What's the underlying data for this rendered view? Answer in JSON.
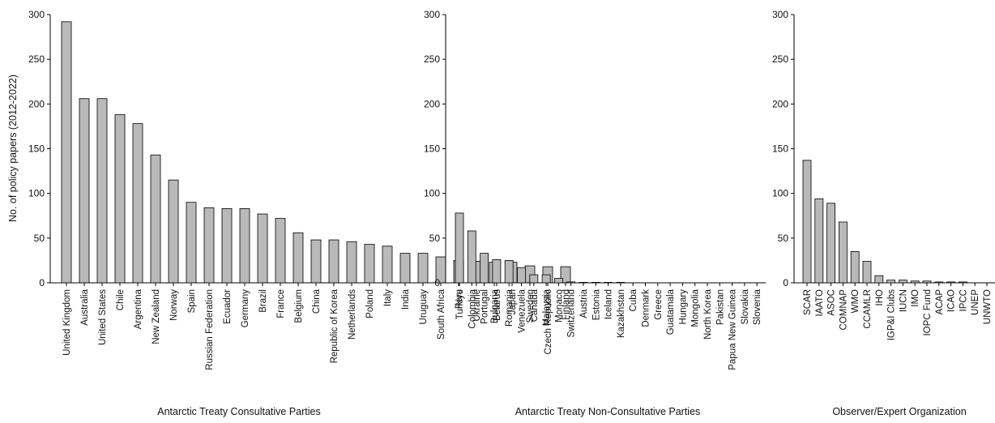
{
  "chart_data": [
    {
      "type": "bar",
      "xlabel": "Antarctic Treaty Consultative Parties",
      "ylabel": "No. of policy papers (2012-2022)",
      "ylim": [
        0,
        300
      ],
      "yticks": [
        "0",
        "50",
        "100",
        "150",
        "200",
        "250",
        "300"
      ],
      "categories": [
        "United Kingdom",
        "Australia",
        "United States",
        "Chile",
        "Argentina",
        "New Zealand",
        "Norway",
        "Spain",
        "Russian Federation",
        "Ecuador",
        "Germany",
        "Brazil",
        "France",
        "Belgium",
        "China",
        "Republic of Korea",
        "Netherlands",
        "Poland",
        "Italy",
        "India",
        "Uruguay",
        "South Africa",
        "Peru",
        "Ukraine",
        "Bulgaria",
        "Japan",
        "Sweden",
        "Czech Republic",
        "Finland"
      ],
      "values": [
        292,
        206,
        206,
        188,
        178,
        143,
        115,
        90,
        84,
        83,
        83,
        77,
        72,
        56,
        48,
        48,
        46,
        43,
        41,
        33,
        33,
        29,
        25,
        24,
        23,
        23,
        19,
        18,
        18
      ]
    },
    {
      "type": "bar",
      "xlabel": "Antarctic Treaty Non-Consultative Parties",
      "ylabel": "",
      "ylim": [
        0,
        300
      ],
      "yticks": [
        "0",
        "50",
        "100",
        "150",
        "200",
        "250",
        "300"
      ],
      "categories": [
        "Turkiye",
        "Colombia",
        "Portugal",
        "Belarus",
        "Romania",
        "Venezuela",
        "Canada",
        "Malaysia",
        "Monaco",
        "Switzerland",
        "Austria",
        "Estonia",
        "Iceland",
        "Kazakhstan",
        "Cuba",
        "Denmark",
        "Greece",
        "Guatamala",
        "Hungary",
        "Mongolia",
        "North Korea",
        "Pakistan",
        "Papua New Guinea",
        "Slovakia",
        "Slovenia"
      ],
      "values": [
        78,
        58,
        33,
        26,
        25,
        17,
        9,
        9,
        5,
        1,
        0.5,
        0.5,
        0.5,
        0.5,
        0,
        0,
        0,
        0,
        0,
        0,
        0,
        0,
        0,
        0,
        0
      ]
    },
    {
      "type": "bar",
      "xlabel": "Observer/Expert Organization",
      "ylabel": "",
      "ylim": [
        0,
        300
      ],
      "yticks": [
        "0",
        "50",
        "100",
        "150",
        "200",
        "250",
        "300"
      ],
      "categories": [
        "SCAR",
        "IAATO",
        "ASOC",
        "COMNAP",
        "WMO",
        "CCAMLR",
        "IHO",
        "IGP&I Clubs",
        "IUCN",
        "IMO",
        "IOPC Fund",
        "ACAP",
        "ICAO",
        "IPCC",
        "UNEP",
        "UNWTO"
      ],
      "values": [
        137,
        94,
        89,
        68,
        35,
        24,
        8,
        3,
        3,
        2,
        2,
        1,
        1,
        1,
        0,
        0
      ]
    }
  ]
}
